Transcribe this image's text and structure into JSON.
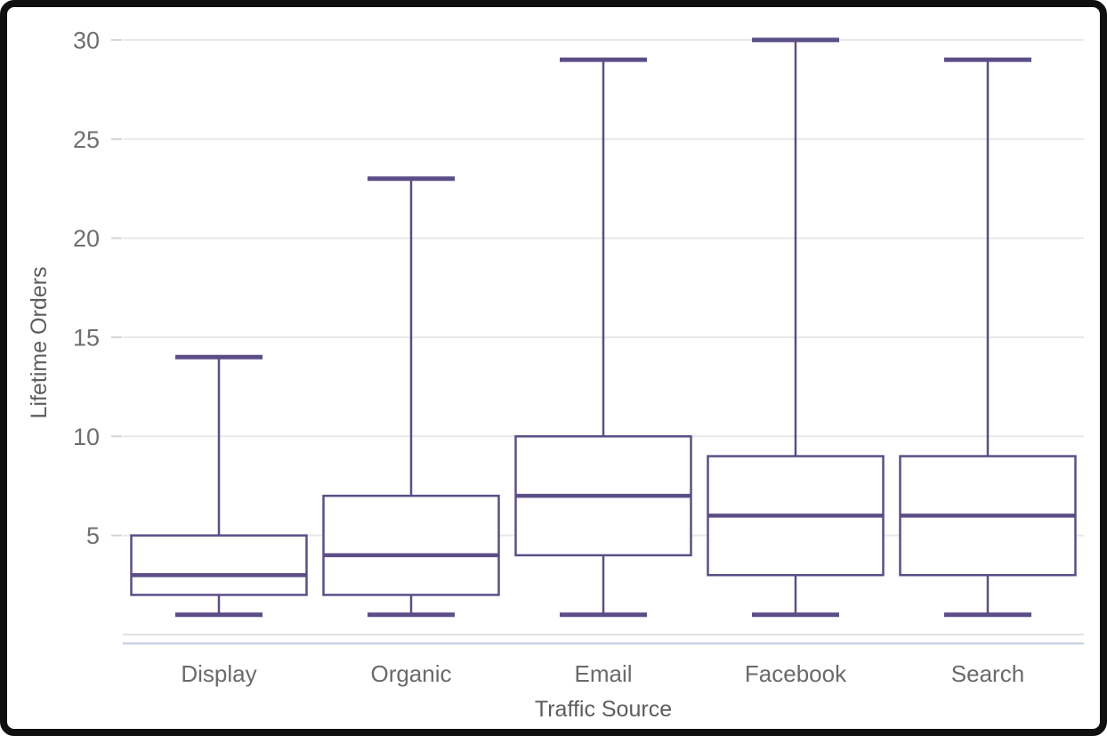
{
  "frame": {
    "border_color": "#101010",
    "background": "#ffffff"
  },
  "chart_data": {
    "type": "boxplot",
    "title": "",
    "xlabel": "Traffic Source",
    "ylabel": "Lifetime Orders",
    "categories": [
      "Display",
      "Organic",
      "Email",
      "Facebook",
      "Search"
    ],
    "series": [
      {
        "category": "Display",
        "min": 1,
        "q1": 2,
        "median": 3,
        "q3": 5,
        "max": 14
      },
      {
        "category": "Organic",
        "min": 1,
        "q1": 2,
        "median": 4,
        "q3": 7,
        "max": 23
      },
      {
        "category": "Email",
        "min": 1,
        "q1": 4,
        "median": 7,
        "q3": 10,
        "max": 29
      },
      {
        "category": "Facebook",
        "min": 1,
        "q1": 3,
        "median": 6,
        "q3": 9,
        "max": 30
      },
      {
        "category": "Search",
        "min": 1,
        "q1": 3,
        "median": 6,
        "q3": 9,
        "max": 29
      }
    ],
    "y_ticks": [
      5,
      10,
      15,
      20,
      25,
      30
    ],
    "ylim": [
      0,
      30
    ],
    "grid": true,
    "legend": false,
    "colors": {
      "box_stroke": "#5B4E86",
      "box_fill": "#ffffff",
      "gridline": "#e8e8e8",
      "zero_gridline": "#e2e2e2",
      "axis_line": "#c9d3e6",
      "tick_mark": "#d4d4d4",
      "tick_text": "#6f6f6f",
      "axis_title_text": "#5d5d5d"
    }
  }
}
